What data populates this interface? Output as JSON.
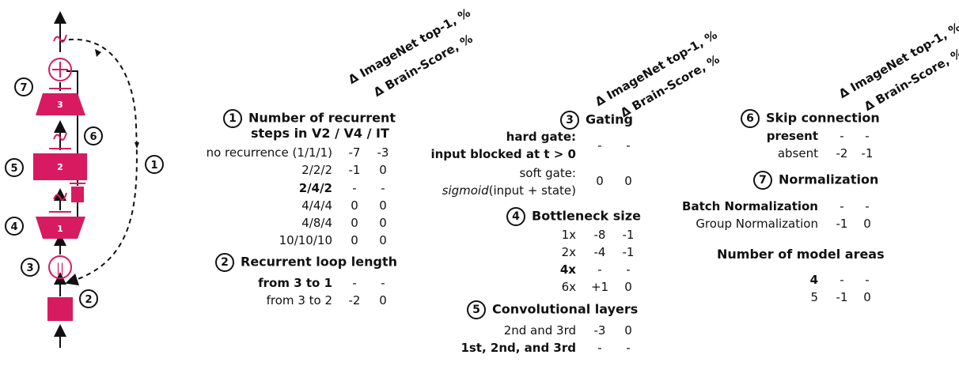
{
  "diagram": {
    "block_labels": [
      "3",
      "2",
      "1"
    ],
    "skip_symbol": "+",
    "gate_symbol": "||",
    "markers": [
      "1",
      "2",
      "3",
      "4",
      "5",
      "6",
      "7"
    ]
  },
  "column_headers": [
    "Δ ImageNet top-1, %",
    "Δ Brain-Score, %"
  ],
  "sections": {
    "recurrent_steps": {
      "marker": "1",
      "title_line1": "Number of recurrent",
      "title_line2": "steps in V2 / V4 / IT",
      "rows": [
        {
          "label": "no recurrence (1/1/1)",
          "a": "-7",
          "b": "-3"
        },
        {
          "label": "2/2/2",
          "a": "-1",
          "b": "0"
        },
        {
          "label": "2/4/2",
          "a": "-",
          "b": "-"
        },
        {
          "label": "4/4/4",
          "a": "0",
          "b": "0"
        },
        {
          "label": "4/8/4",
          "a": "0",
          "b": "0"
        },
        {
          "label": "10/10/10",
          "a": "0",
          "b": "0"
        }
      ]
    },
    "loop_length": {
      "marker": "2",
      "title": "Recurrent loop length",
      "rows": [
        {
          "label": "from 3 to 1",
          "a": "-",
          "b": "-"
        },
        {
          "label": "from 3 to 2",
          "a": "-2",
          "b": "0"
        }
      ]
    },
    "gating": {
      "marker": "3",
      "title": "Gating",
      "hard_line1": "hard gate:",
      "hard_line2": "input blocked at t > 0",
      "hard_a": "-",
      "hard_b": "-",
      "soft_line1": "soft gate:",
      "soft_italic": "sigmoid",
      "soft_rest": "(input + state)",
      "soft_a": "0",
      "soft_b": "0"
    },
    "bottleneck": {
      "marker": "4",
      "title": "Bottleneck size",
      "rows": [
        {
          "label": "1x",
          "a": "-8",
          "b": "-1"
        },
        {
          "label": "2x",
          "a": "-4",
          "b": "-1"
        },
        {
          "label": "4x",
          "a": "-",
          "b": "-"
        },
        {
          "label": "6x",
          "a": "+1",
          "b": "0"
        }
      ]
    },
    "conv_layers": {
      "marker": "5",
      "title": "Convolutional layers",
      "rows": [
        {
          "label": "2nd and 3rd",
          "a": "-3",
          "b": "0"
        },
        {
          "label": "1st, 2nd, and 3rd",
          "a": "-",
          "b": "-"
        }
      ]
    },
    "skip": {
      "marker": "6",
      "title": "Skip connection",
      "rows": [
        {
          "label": "present",
          "a": "-",
          "b": "-"
        },
        {
          "label": "absent",
          "a": "-2",
          "b": "-1"
        }
      ]
    },
    "normalization": {
      "marker": "7",
      "title": "Normalization",
      "rows": [
        {
          "label": "Batch Normalization",
          "a": "-",
          "b": "-"
        },
        {
          "label": "Group Normalization",
          "a": "-1",
          "b": "0"
        }
      ]
    },
    "areas": {
      "title": "Number of model areas",
      "rows": [
        {
          "label": "4",
          "a": "-",
          "b": "-"
        },
        {
          "label": "5",
          "a": "-1",
          "b": "0"
        }
      ]
    }
  },
  "colors": {
    "accent": "#d81b60",
    "text": "#111111"
  }
}
